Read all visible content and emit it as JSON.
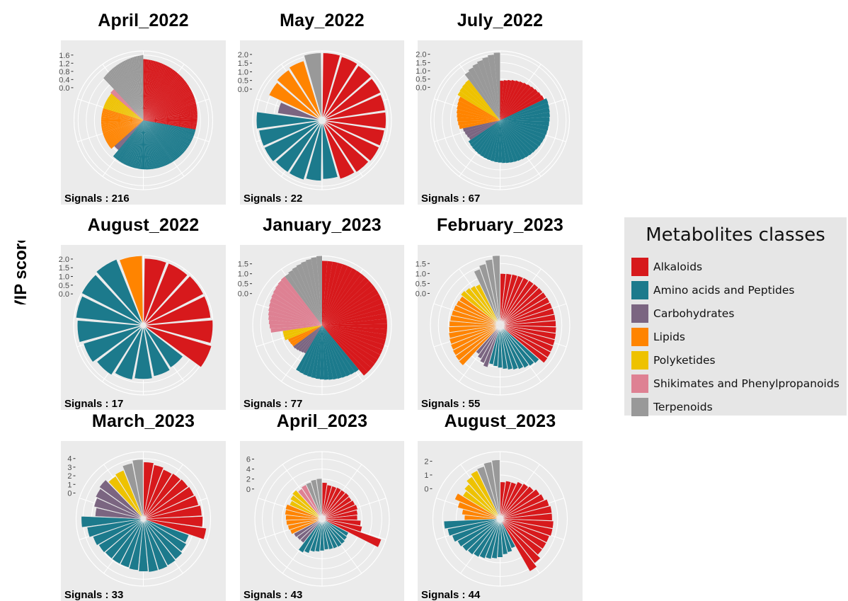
{
  "figure": {
    "ylabel": "VIP score"
  },
  "legend": {
    "title": "Metabolites classes",
    "items": [
      {
        "label": "Alkaloids",
        "color": "#d7191c"
      },
      {
        "label": "Amino acids and Peptides",
        "color": "#1c7a8c"
      },
      {
        "label": "Carbohydrates",
        "color": "#7b6581"
      },
      {
        "label": "Lipids",
        "color": "#ff8400"
      },
      {
        "label": "Polyketides",
        "color": "#eec200"
      },
      {
        "label": "Shikimates and Phenylpropanoids",
        "color": "#de8193"
      },
      {
        "label": "Terpenoids",
        "color": "#999999"
      }
    ]
  },
  "chart_data": [
    {
      "type": "bar",
      "polar": true,
      "title": "April_2022",
      "signals_label": "Signals : 216",
      "yticks": [
        "1.6",
        "1.2",
        "0.8",
        "0.4",
        "0.0"
      ],
      "ylim": [
        -1.6,
        1.8
      ],
      "groups": [
        {
          "class": "Alkaloids",
          "n": 60,
          "from": 1.4,
          "to": 1.0
        },
        {
          "class": "Amino acids and Peptides",
          "n": 72,
          "from": 1.0,
          "to": 0.7
        },
        {
          "class": "Carbohydrates",
          "n": 5,
          "from": 0.3,
          "to": 0.3
        },
        {
          "class": "Lipids",
          "n": 35,
          "from": 0.5,
          "to": 0.45
        },
        {
          "class": "Polyketides",
          "n": 14,
          "from": 0.45,
          "to": 0.45
        },
        {
          "class": "Shikimates and Phenylpropanoids",
          "n": 4,
          "from": 0.5,
          "to": 0.5
        },
        {
          "class": "Terpenoids",
          "n": 26,
          "from": 1.25,
          "to": 1.6
        }
      ]
    },
    {
      "type": "bar",
      "polar": true,
      "title": "May_2022",
      "signals_label": "Signals : 22",
      "yticks": [
        "2.0",
        "1.5",
        "1.0",
        "0.5",
        "0.0"
      ],
      "ylim": [
        -1.8,
        2.2
      ],
      "groups": [
        {
          "class": "Alkaloids",
          "values": [
            2.1,
            2.05,
            2.0,
            1.95,
            1.9,
            1.9,
            1.85,
            1.85,
            1.8,
            1.75
          ]
        },
        {
          "class": "Amino acids and Peptides",
          "values": [
            1.6,
            1.7,
            1.8,
            1.8,
            1.9,
            1.9,
            2.0
          ]
        },
        {
          "class": "Carbohydrates",
          "values": [
            0.8
          ]
        },
        {
          "class": "Lipids",
          "values": [
            1.6,
            1.7,
            1.8
          ]
        },
        {
          "class": "Terpenoids",
          "values": [
            2.1
          ]
        }
      ]
    },
    {
      "type": "bar",
      "polar": true,
      "title": "July_2022",
      "signals_label": "Signals : 67",
      "yticks": [
        "2.0",
        "1.5",
        "1.0",
        "0.5",
        "0.0"
      ],
      "ylim": [
        -2.0,
        2.2
      ],
      "groups": [
        {
          "class": "Alkaloids",
          "n": 12,
          "from": 0.4,
          "to": 0.95
        },
        {
          "class": "Amino acids and Peptides",
          "n": 32,
          "from": 1.1,
          "to": 0.3
        },
        {
          "class": "Carbohydrates",
          "n": 4,
          "from": 0.15,
          "to": 0.3
        },
        {
          "class": "Lipids",
          "n": 8,
          "from": 0.5,
          "to": 0.8
        },
        {
          "class": "Polyketides",
          "n": 4,
          "from": 1.0,
          "to": 1.1
        },
        {
          "class": "Terpenoids",
          "n": 7,
          "from": 1.5,
          "to": 2.1
        }
      ]
    },
    {
      "type": "bar",
      "polar": true,
      "title": "August_2022",
      "signals_label": "Signals : 17",
      "yticks": [
        "2.0",
        "1.5",
        "1.0",
        "0.5",
        "0.0"
      ],
      "ylim": [
        -1.8,
        2.2
      ],
      "groups": [
        {
          "class": "Alkaloids",
          "values": [
            2.05,
            2.05,
            2.1,
            2.1,
            2.2,
            2.3
          ]
        },
        {
          "class": "Amino acids and Peptides",
          "values": [
            1.1,
            1.2,
            1.3,
            1.4,
            1.6,
            1.8,
            2.0,
            2.1,
            2.2,
            2.3
          ]
        },
        {
          "class": "Lipids",
          "values": [
            2.2
          ]
        }
      ]
    },
    {
      "type": "bar",
      "polar": true,
      "title": "January_2023",
      "signals_label": "Signals : 77",
      "yticks": [
        "1.5",
        "1.0",
        "0.5",
        "0.0"
      ],
      "ylim": [
        -1.6,
        1.9
      ],
      "groups": [
        {
          "class": "Alkaloids",
          "n": 30,
          "from": 1.65,
          "to": 1.7
        },
        {
          "class": "Amino acids and Peptides",
          "n": 15,
          "from": 1.3,
          "to": 1.0
        },
        {
          "class": "Carbohydrates",
          "n": 5,
          "from": 0.05,
          "to": 0.2
        },
        {
          "class": "Lipids",
          "n": 3,
          "from": 0.2,
          "to": 0.25
        },
        {
          "class": "Polyketides",
          "n": 3,
          "from": 0.4,
          "to": 0.4
        },
        {
          "class": "Shikimates and Phenylpropanoids",
          "n": 13,
          "from": 1.0,
          "to": 1.5
        },
        {
          "class": "Terpenoids",
          "n": 8,
          "from": 1.5,
          "to": 1.9
        }
      ]
    },
    {
      "type": "bar",
      "polar": true,
      "title": "February_2023",
      "signals_label": "Signals : 55",
      "yticks": [
        "1.5",
        "1.0",
        "0.5",
        "0.0"
      ],
      "ylim": [
        -1.6,
        1.9
      ],
      "groups": [
        {
          "class": "Alkaloids",
          "n": 20,
          "from": 1.0,
          "to": 1.3
        },
        {
          "class": "Amino acids and Peptides",
          "n": 10,
          "from": 1.0,
          "to": 0.4
        },
        {
          "class": "Carbohydrates",
          "n": 4,
          "from": 0.6,
          "to": 0.2
        },
        {
          "class": "Lipids",
          "n": 13,
          "from": 1.15,
          "to": 0.8
        },
        {
          "class": "Polyketides",
          "n": 4,
          "from": 0.9,
          "to": 0.7
        },
        {
          "class": "Terpenoids",
          "n": 4,
          "from": 1.4,
          "to": 1.9
        }
      ]
    },
    {
      "type": "bar",
      "polar": true,
      "title": "March_2023",
      "signals_label": "Signals : 33",
      "yticks": [
        "4",
        "3",
        "2",
        "1",
        "0"
      ],
      "ylim": [
        -3.0,
        4.8
      ],
      "groups": [
        {
          "class": "Alkaloids",
          "values": [
            3.6,
            3.4,
            3.2,
            3.3,
            3.4,
            3.5,
            3.6,
            3.8,
            3.9,
            4.4
          ]
        },
        {
          "class": "Amino acids and Peptides",
          "values": [
            2.6,
            2.8,
            3.0,
            3.1,
            3.2,
            3.2,
            3.1,
            3.0,
            2.9,
            2.9,
            2.9,
            3.0,
            3.2,
            3.6,
            4.2
          ]
        },
        {
          "class": "Carbohydrates",
          "values": [
            2.6,
            2.9,
            3.1,
            3.3
          ]
        },
        {
          "class": "Polyketides",
          "values": [
            2.9,
            3.1
          ]
        },
        {
          "class": "Terpenoids",
          "values": [
            3.6,
            3.9
          ]
        }
      ]
    },
    {
      "type": "bar",
      "polar": true,
      "title": "April_2023",
      "signals_label": "Signals : 43",
      "yticks": [
        "6",
        "4",
        "2",
        "0"
      ],
      "ylim": [
        -6.0,
        7.5
      ],
      "groups": [
        {
          "class": "Alkaloids",
          "values": [
            1.3,
            0.9,
            0.9,
            1.0,
            1.0,
            1.1,
            1.0,
            1.2,
            1.4,
            1.2,
            1.1,
            1.8,
            2.2,
            6.6
          ]
        },
        {
          "class": "Amino acids and Peptides",
          "values": [
            0.0,
            0.2,
            0.4,
            0.5,
            0.4,
            0.3,
            0.2,
            0.4,
            0.6,
            0.8,
            1.4,
            1.8
          ]
        },
        {
          "class": "Carbohydrates",
          "values": [
            0.1,
            0.2,
            0.4
          ]
        },
        {
          "class": "Lipids",
          "values": [
            0.8,
            1.0,
            1.2,
            1.3,
            1.5,
            1.6
          ]
        },
        {
          "class": "Polyketides",
          "values": [
            1.1,
            1.5,
            1.8
          ]
        },
        {
          "class": "Shikimates and Phenylpropanoids",
          "values": [
            1.3,
            1.6
          ]
        },
        {
          "class": "Terpenoids",
          "values": [
            1.7,
            2.0,
            2.1
          ]
        }
      ]
    },
    {
      "type": "bar",
      "polar": true,
      "title": "August_2023",
      "signals_label": "Signals : 44",
      "yticks": [
        "2",
        "1",
        "0"
      ],
      "ylim": [
        -2.2,
        2.7
      ],
      "groups": [
        {
          "class": "Alkaloids",
          "values": [
            0.5,
            0.6,
            0.6,
            0.8,
            0.9,
            1.0,
            1.2,
            1.3,
            1.5,
            1.6,
            1.6,
            1.7,
            1.7,
            1.6,
            1.6,
            1.6,
            1.9,
            2.2
          ]
        },
        {
          "class": "Amino acids and Peptides",
          "values": [
            0.1,
            0.3,
            0.4,
            0.6,
            0.7,
            0.8,
            0.9,
            1.0,
            1.1,
            1.2,
            1.3,
            1.5,
            1.7,
            1.9
          ]
        },
        {
          "class": "Lipids",
          "values": [
            0.4,
            0.6,
            1.0,
            1.4
          ]
        },
        {
          "class": "Polyketides",
          "values": [
            1.0,
            1.2,
            1.5,
            1.7
          ]
        },
        {
          "class": "Terpenoids",
          "values": [
            1.8,
            2.0,
            2.1
          ]
        }
      ]
    }
  ]
}
